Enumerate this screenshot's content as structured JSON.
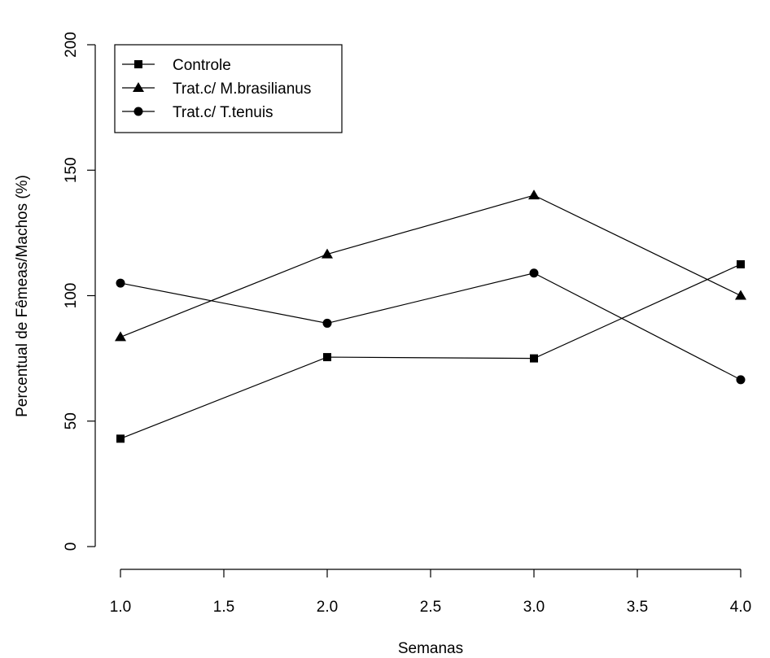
{
  "chart_data": {
    "type": "line",
    "title": "",
    "xlabel": "Semanas",
    "ylabel": "Percentual de Fêmeas/Machos (%)",
    "x": [
      1.0,
      2.0,
      3.0,
      4.0
    ],
    "xlim": [
      1.0,
      4.0
    ],
    "ylim": [
      0,
      200
    ],
    "x_ticks": [
      "1.0",
      "1.5",
      "2.0",
      "2.5",
      "3.0",
      "3.5",
      "4.0"
    ],
    "y_ticks": [
      "0",
      "50",
      "100",
      "150",
      "200"
    ],
    "grid": false,
    "legend_position": "top-left",
    "series": [
      {
        "name": "Controle",
        "marker": "square",
        "values": [
          43,
          75.5,
          75,
          112.5
        ]
      },
      {
        "name": "Trat.c/ M.brasilianus",
        "marker": "triangle",
        "values": [
          83.5,
          116.5,
          140,
          100
        ]
      },
      {
        "name": "Trat.c/ T.tenuis",
        "marker": "circle",
        "values": [
          105,
          89,
          109,
          66.5
        ]
      }
    ]
  }
}
